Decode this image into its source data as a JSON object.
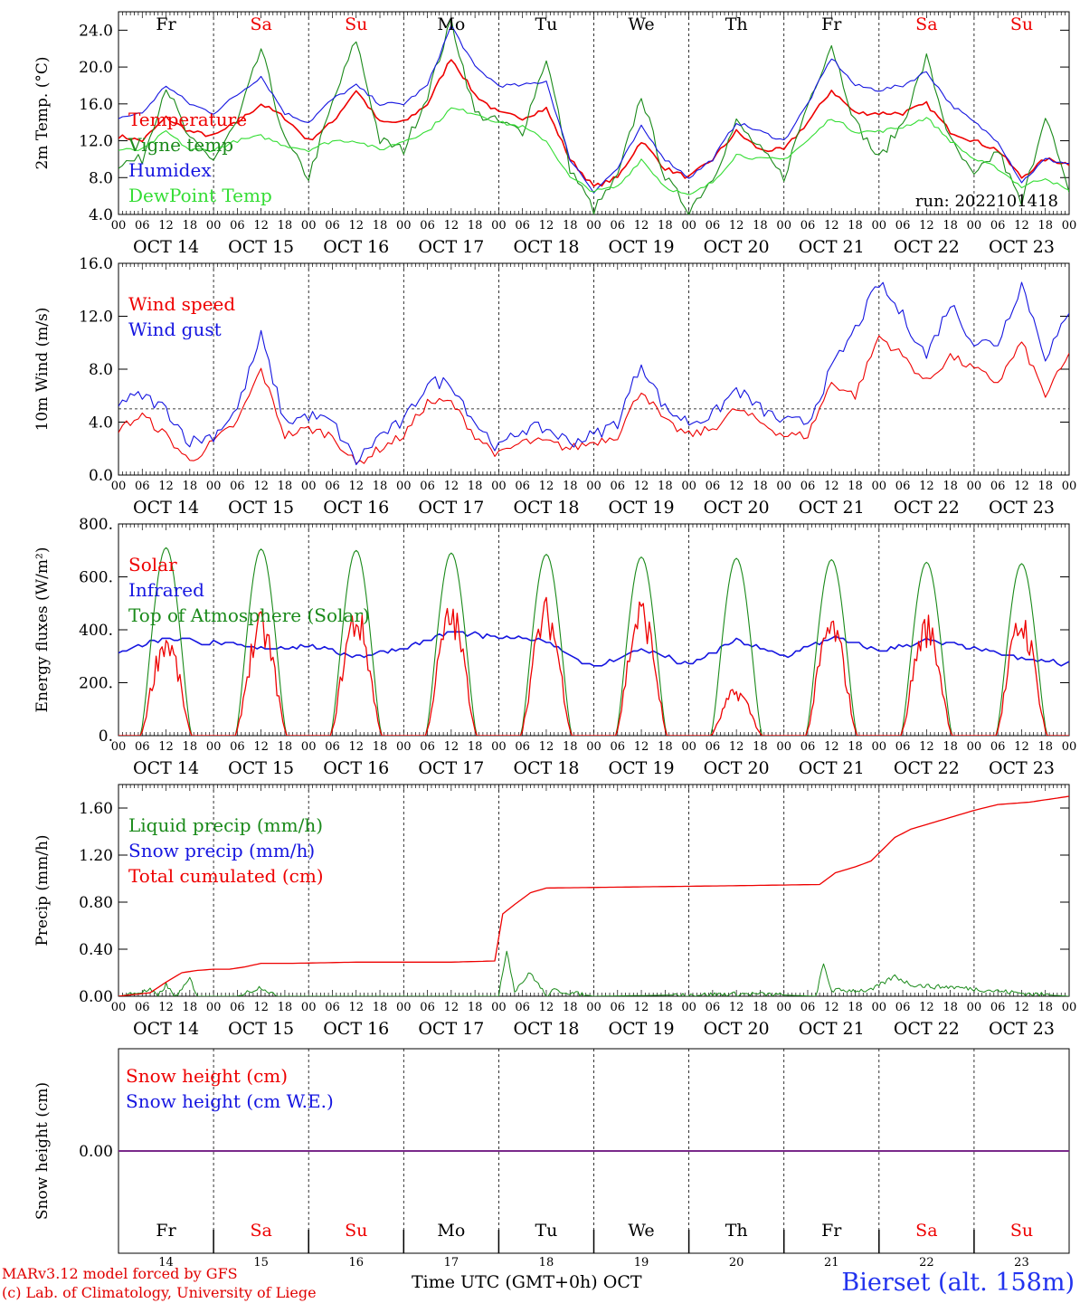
{
  "colors": {
    "red": "#ee0000",
    "green": "#1a8a1a",
    "blue": "#1515e0",
    "lightgreen": "#33dd33",
    "purple": "#7a2a8a"
  },
  "days": {
    "weekday_labels": [
      "Fr",
      "Sa",
      "Su",
      "Mo",
      "Tu",
      "We",
      "Th",
      "Fr",
      "Sa",
      "Su"
    ],
    "weekday_colors": [
      "black",
      "red",
      "red",
      "black",
      "black",
      "black",
      "black",
      "black",
      "red",
      "red"
    ],
    "date_labels": [
      "OCT 14",
      "OCT 15",
      "OCT 16",
      "OCT 17",
      "OCT 18",
      "OCT 19",
      "OCT 20",
      "OCT 21",
      "OCT 22",
      "OCT 23"
    ],
    "day_numbers": [
      "14",
      "15",
      "16",
      "17",
      "18",
      "19",
      "20",
      "21",
      "22",
      "23"
    ],
    "hour_ticks": [
      "00",
      "06",
      "12",
      "18"
    ],
    "final_hour": "00"
  },
  "chart_data": [
    {
      "type": "line",
      "ylabel": "2m Temp. (°C)",
      "ylim": [
        4,
        26
      ],
      "yticks": [
        "4.0",
        "8.0",
        "12.0",
        "16.0",
        "20.0",
        "24.0"
      ],
      "run_label": "run: 2022101418",
      "x_unit": "hours since OCT 14 00 UTC",
      "series": [
        {
          "name": "Temperature",
          "color": "red",
          "x": [
            0,
            6,
            12,
            18,
            24,
            30,
            36,
            42,
            48,
            54,
            60,
            66,
            72,
            78,
            84,
            90,
            96,
            102,
            108,
            114,
            120,
            126,
            132,
            138,
            144,
            150,
            156,
            162,
            168,
            174,
            180,
            186,
            192,
            198,
            204,
            210,
            216,
            222,
            228,
            234,
            240
          ],
          "values": [
            12.5,
            12,
            14.5,
            13,
            12.5,
            14,
            16,
            14.5,
            12,
            14,
            17.5,
            14,
            14,
            16,
            21,
            17,
            15,
            14.5,
            15.5,
            10,
            7,
            8,
            12,
            9,
            8,
            10,
            13,
            11,
            11,
            14,
            17.5,
            15,
            15,
            15,
            16,
            13,
            12,
            11,
            8,
            10,
            9.5
          ]
        },
        {
          "name": "Vigne temp",
          "color": "green",
          "x": [
            0,
            6,
            12,
            18,
            24,
            30,
            36,
            42,
            48,
            54,
            60,
            66,
            72,
            78,
            84,
            90,
            96,
            102,
            108,
            114,
            120,
            126,
            132,
            138,
            144,
            150,
            156,
            162,
            168,
            174,
            180,
            186,
            192,
            198,
            204,
            210,
            216,
            222,
            228,
            234,
            240
          ],
          "values": [
            9.5,
            10,
            18,
            12,
            10,
            14,
            22,
            12,
            8,
            16,
            23,
            12,
            11,
            17,
            25,
            15,
            14,
            13,
            21,
            9,
            4.5,
            8,
            17,
            8,
            4.5,
            8,
            14,
            11,
            8,
            16,
            22.5,
            14,
            10,
            14,
            21,
            12,
            8,
            11,
            5,
            15,
            6
          ]
        },
        {
          "name": "Humidex",
          "color": "blue",
          "x": [
            0,
            6,
            12,
            18,
            24,
            30,
            36,
            42,
            48,
            54,
            60,
            66,
            72,
            78,
            84,
            90,
            96,
            102,
            108,
            114,
            120,
            126,
            132,
            138,
            144,
            150,
            156,
            162,
            168,
            174,
            180,
            186,
            192,
            198,
            204,
            210,
            216,
            222,
            228,
            234,
            240
          ],
          "values": [
            14.5,
            15,
            18,
            16,
            15,
            17,
            19,
            15,
            14,
            16.5,
            18,
            16,
            16,
            18,
            24.5,
            20,
            18,
            18,
            18.5,
            10,
            6.5,
            9,
            13.5,
            10,
            8,
            10,
            14,
            13,
            12,
            16,
            21,
            18,
            17.5,
            18,
            19.5,
            16,
            14,
            12,
            7.5,
            10,
            9.5
          ]
        },
        {
          "name": "DewPoint Temp",
          "color": "lightgreen",
          "x": [
            0,
            6,
            12,
            18,
            24,
            30,
            36,
            42,
            48,
            54,
            60,
            66,
            72,
            78,
            84,
            90,
            96,
            102,
            108,
            114,
            120,
            126,
            132,
            138,
            144,
            150,
            156,
            162,
            168,
            174,
            180,
            186,
            192,
            198,
            204,
            210,
            216,
            222,
            228,
            234,
            240
          ],
          "values": [
            11,
            11,
            13,
            11,
            11,
            12,
            12.5,
            11.5,
            11,
            12,
            12,
            11,
            12,
            13,
            15.5,
            15,
            14,
            13.5,
            12,
            8,
            6.5,
            7,
            10,
            7,
            6,
            7.5,
            10.5,
            10,
            10,
            12,
            14.5,
            13,
            13,
            13.5,
            14.5,
            12,
            10,
            9,
            7,
            8,
            6.5
          ]
        }
      ]
    },
    {
      "type": "line",
      "ylabel": "10m Wind (m/s)",
      "ylim": [
        0,
        16
      ],
      "yticks": [
        "0.0",
        "4.0",
        "8.0",
        "12.0",
        "16.0"
      ],
      "reference_line": 5,
      "x_unit": "hours since OCT 14 00 UTC",
      "series": [
        {
          "name": "Wind speed",
          "color": "red",
          "x": [
            0,
            6,
            12,
            18,
            24,
            30,
            36,
            42,
            48,
            54,
            60,
            66,
            72,
            78,
            84,
            90,
            96,
            102,
            108,
            114,
            120,
            126,
            132,
            138,
            144,
            150,
            156,
            162,
            168,
            174,
            180,
            186,
            192,
            198,
            204,
            210,
            216,
            222,
            228,
            234,
            240
          ],
          "values": [
            3.5,
            4.5,
            3,
            1,
            2.5,
            4,
            8,
            3,
            3.5,
            3,
            0.8,
            2,
            3,
            5.5,
            5.5,
            3,
            1.5,
            2.5,
            2.5,
            2,
            2.5,
            3,
            6.5,
            4,
            3,
            3.5,
            5,
            4,
            3,
            3,
            7,
            6,
            10.5,
            9,
            7,
            9,
            8,
            7,
            10,
            6,
            9
          ]
        },
        {
          "name": "Wind gust",
          "color": "blue",
          "x": [
            0,
            6,
            12,
            18,
            24,
            30,
            36,
            42,
            48,
            54,
            60,
            66,
            72,
            78,
            84,
            90,
            96,
            102,
            108,
            114,
            120,
            126,
            132,
            138,
            144,
            150,
            156,
            162,
            168,
            174,
            180,
            186,
            192,
            198,
            204,
            210,
            216,
            222,
            228,
            234,
            240
          ],
          "values": [
            5.5,
            6,
            5,
            2.5,
            3,
            5,
            10.5,
            4,
            4.5,
            4,
            1,
            3,
            4,
            7,
            7,
            4,
            2,
            3.5,
            3.5,
            2.5,
            3,
            4,
            8.5,
            5,
            4,
            4.5,
            6.5,
            5,
            4,
            4,
            8,
            11,
            14.5,
            12,
            9,
            13,
            10,
            10,
            14.5,
            9,
            12
          ]
        }
      ]
    },
    {
      "type": "line",
      "ylabel": "Energy fluxes (W/m²)",
      "ylim": [
        0,
        800
      ],
      "yticks": [
        "0.",
        "200.",
        "400.",
        "600.",
        "800."
      ],
      "x_unit": "hours since OCT 14 00 UTC",
      "series": [
        {
          "name": "Solar",
          "color": "red",
          "peaks": [
            {
              "x": 12,
              "y": 350
            },
            {
              "x": 36,
              "y": 400
            },
            {
              "x": 60,
              "y": 430
            },
            {
              "x": 84,
              "y": 440
            },
            {
              "x": 108,
              "y": 450
            },
            {
              "x": 132,
              "y": 455
            },
            {
              "x": 156,
              "y": 160
            },
            {
              "x": 180,
              "y": 400
            },
            {
              "x": 204,
              "y": 400
            },
            {
              "x": 228,
              "y": 415
            }
          ]
        },
        {
          "name": "Infrared",
          "color": "blue",
          "x": [
            0,
            12,
            24,
            36,
            48,
            60,
            72,
            84,
            96,
            108,
            120,
            132,
            144,
            156,
            168,
            180,
            192,
            204,
            216,
            228,
            240
          ],
          "values": [
            320,
            370,
            350,
            330,
            340,
            300,
            330,
            390,
            370,
            360,
            255,
            330,
            265,
            360,
            300,
            370,
            320,
            360,
            330,
            290,
            270
          ]
        },
        {
          "name": "Top of Atmosphere (Solar)",
          "color": "green",
          "peaks": [
            {
              "x": 12,
              "y": 710
            },
            {
              "x": 36,
              "y": 705
            },
            {
              "x": 60,
              "y": 700
            },
            {
              "x": 84,
              "y": 690
            },
            {
              "x": 108,
              "y": 685
            },
            {
              "x": 132,
              "y": 675
            },
            {
              "x": 156,
              "y": 670
            },
            {
              "x": 180,
              "y": 665
            },
            {
              "x": 204,
              "y": 655
            },
            {
              "x": 228,
              "y": 650
            }
          ]
        }
      ]
    },
    {
      "type": "line",
      "ylabel": "Precip (mm/h)",
      "ylim": [
        0,
        1.8
      ],
      "yticks": [
        "0.00",
        "0.40",
        "0.80",
        "1.20",
        "1.60"
      ],
      "x_unit": "hours since OCT 14 00 UTC",
      "series": [
        {
          "name": "Liquid precip (mm/h)",
          "color": "green",
          "x": [
            0,
            8,
            10,
            12,
            14,
            16,
            18,
            20,
            30,
            36,
            40,
            60,
            90,
            96,
            98,
            100,
            104,
            108,
            110,
            120,
            160,
            176,
            178,
            180,
            184,
            190,
            196,
            200,
            206,
            210,
            220,
            230,
            240
          ],
          "values": [
            0,
            0.05,
            0,
            0.1,
            0,
            0.05,
            0.15,
            0,
            0,
            0.08,
            0,
            0,
            0,
            0,
            0.4,
            0.05,
            0.2,
            0,
            0.05,
            0,
            0.02,
            0,
            0.27,
            0.05,
            0.05,
            0.05,
            0.17,
            0.1,
            0.08,
            0.08,
            0.05,
            0.02,
            0
          ]
        },
        {
          "name": "Snow precip (mm/h)",
          "color": "blue",
          "x": [
            0,
            240
          ],
          "values": [
            0,
            0
          ]
        },
        {
          "name": "Total cumulated (cm)",
          "color": "red",
          "x": [
            0,
            8,
            12,
            16,
            20,
            24,
            28,
            32,
            36,
            44,
            60,
            84,
            95,
            97,
            100,
            104,
            108,
            132,
            156,
            177,
            181,
            186,
            190,
            196,
            200,
            210,
            216,
            222,
            230,
            240
          ],
          "values": [
            0,
            0.03,
            0.12,
            0.2,
            0.22,
            0.23,
            0.23,
            0.25,
            0.28,
            0.28,
            0.29,
            0.29,
            0.3,
            0.7,
            0.78,
            0.88,
            0.92,
            0.93,
            0.94,
            0.95,
            1.05,
            1.1,
            1.15,
            1.35,
            1.42,
            1.52,
            1.58,
            1.63,
            1.65,
            1.7
          ]
        }
      ]
    },
    {
      "type": "line",
      "ylabel": "Snow height (cm)",
      "ylim": [
        -1,
        1
      ],
      "yticks": [
        "0.00"
      ],
      "x_unit": "hours since OCT 14 00 UTC",
      "series": [
        {
          "name": "Snow height (cm)",
          "color": "red",
          "x": [
            0,
            240
          ],
          "values": [
            0,
            0
          ]
        },
        {
          "name": "Snow height (cm W.E.)",
          "color": "blue",
          "x": [
            0,
            240
          ],
          "values": [
            0,
            0
          ]
        }
      ]
    }
  ],
  "footer": {
    "model_line": "MARv3.12 model forced by GFS",
    "credit_line": "(c) Lab. of Climatology, University of Liege",
    "time_label": "Time UTC (GMT+0h)",
    "month_label": "OCT",
    "station": "Bierset (alt. 158m)"
  }
}
